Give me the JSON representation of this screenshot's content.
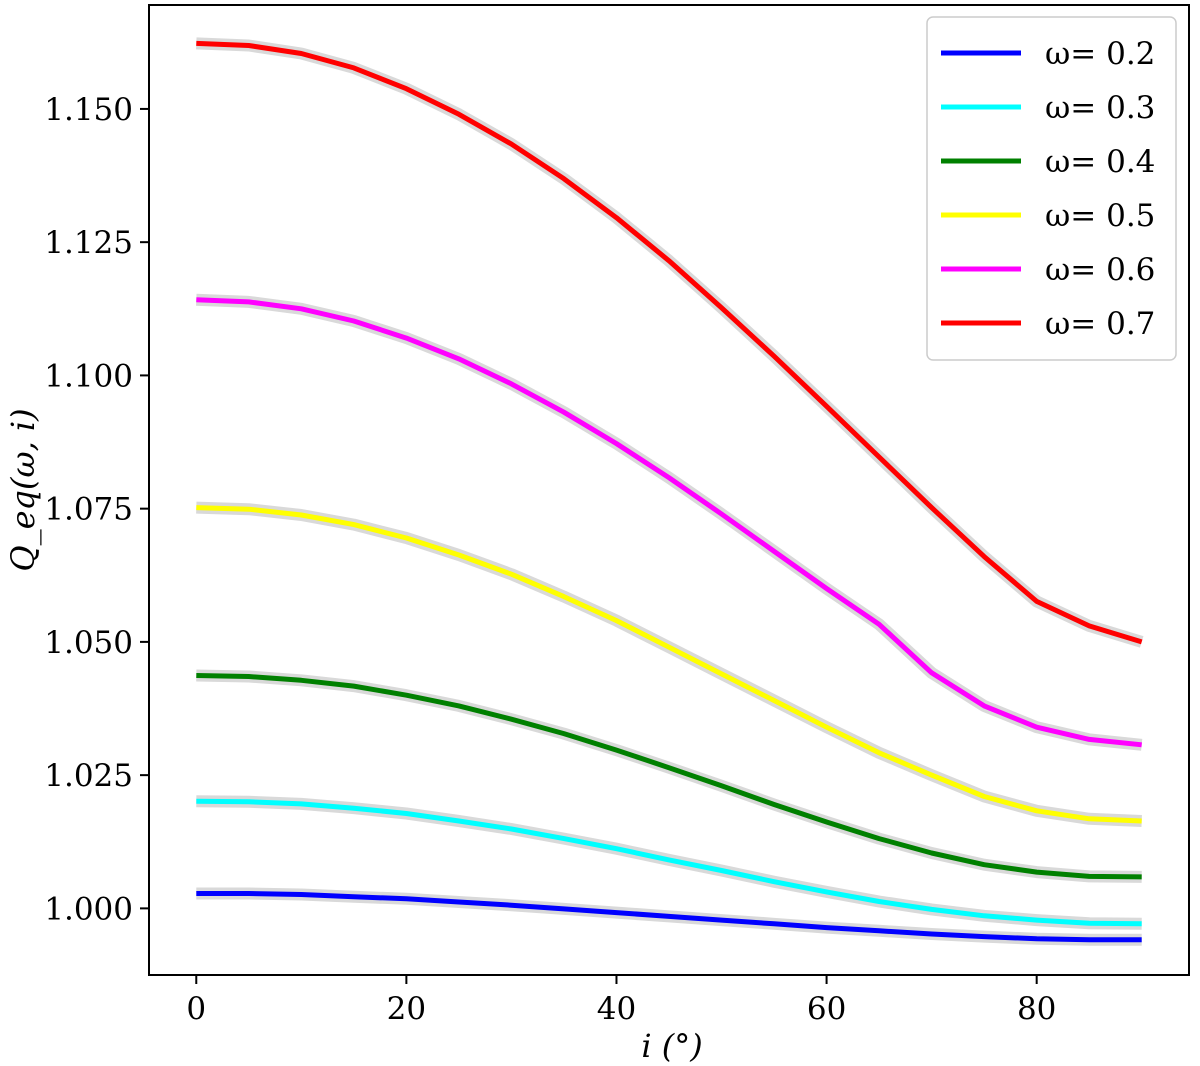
{
  "chart_data": {
    "type": "line",
    "title": "",
    "xlabel": "i (°)",
    "ylabel": "Q_eq(ω, i)",
    "xlim": [
      -4.5,
      94.5
    ],
    "ylim": [
      0.9875,
      1.1695
    ],
    "xticks": [
      0,
      20,
      40,
      60,
      80
    ],
    "xtick_labels": [
      "0",
      "20",
      "40",
      "60",
      "80"
    ],
    "yticks": [
      1.0,
      1.025,
      1.05,
      1.075,
      1.1,
      1.125,
      1.15
    ],
    "ytick_labels": [
      "1.000",
      "1.025",
      "1.050",
      "1.075",
      "1.100",
      "1.125",
      "1.150"
    ],
    "grid": false,
    "legend_position": "top-right",
    "x": [
      0,
      5,
      10,
      15,
      20,
      25,
      30,
      35,
      40,
      45,
      50,
      55,
      60,
      65,
      70,
      75,
      80,
      85,
      90
    ],
    "series": [
      {
        "name": "ω= 0.2",
        "color": "#0000ff",
        "values": [
          1.0028,
          1.0028,
          1.0026,
          1.0022,
          1.0018,
          1.0012,
          1.0006,
          0.9999,
          0.9992,
          0.9985,
          0.9978,
          0.9971,
          0.9964,
          0.9958,
          0.9952,
          0.9947,
          0.9943,
          0.9941,
          0.9941
        ]
      },
      {
        "name": "ω= 0.3",
        "color": "#00ffff",
        "values": [
          1.0201,
          1.02,
          1.0196,
          1.0188,
          1.0178,
          1.0164,
          1.0149,
          1.0131,
          1.0112,
          1.0091,
          1.0071,
          1.005,
          1.0031,
          1.0013,
          0.9998,
          0.9986,
          0.9978,
          0.9972,
          0.9971
        ]
      },
      {
        "name": "ω= 0.4",
        "color": "#008000",
        "values": [
          1.0437,
          1.0435,
          1.0428,
          1.0417,
          1.04,
          1.038,
          1.0355,
          1.0328,
          1.0297,
          1.0264,
          1.023,
          1.0195,
          1.0162,
          1.0131,
          1.0104,
          1.0082,
          1.0068,
          1.006,
          1.0059
        ]
      },
      {
        "name": "ω= 0.5",
        "color": "#ffff00",
        "values": [
          1.0752,
          1.0749,
          1.0738,
          1.072,
          1.0695,
          1.0663,
          1.0627,
          1.0585,
          1.054,
          1.049,
          1.044,
          1.039,
          1.034,
          1.0292,
          1.025,
          1.021,
          1.0183,
          1.0168,
          1.0164
        ]
      },
      {
        "name": "ω= 0.6",
        "color": "#ff00ff",
        "values": [
          1.1142,
          1.1138,
          1.1125,
          1.1102,
          1.107,
          1.1031,
          1.0984,
          1.0931,
          1.0872,
          1.0808,
          1.074,
          1.067,
          1.06,
          1.0533,
          1.0442,
          1.038,
          1.034,
          1.0317,
          1.0307
        ]
      },
      {
        "name": "ω= 0.7",
        "color": "#ff0000",
        "values": [
          1.1623,
          1.1619,
          1.1604,
          1.1577,
          1.1538,
          1.149,
          1.1434,
          1.1369,
          1.1296,
          1.1215,
          1.1127,
          1.1036,
          1.0942,
          1.0847,
          1.0752,
          1.066,
          1.0576,
          1.053,
          1.05
        ]
      }
    ]
  }
}
